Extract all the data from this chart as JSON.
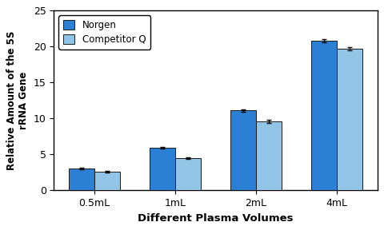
{
  "categories": [
    "0.5mL",
    "1mL",
    "2mL",
    "4mL"
  ],
  "norgen_values": [
    3.05,
    5.9,
    11.1,
    20.8
  ],
  "competitor_values": [
    2.6,
    4.5,
    9.6,
    19.7
  ],
  "norgen_errors": [
    0.12,
    0.12,
    0.18,
    0.25
  ],
  "competitor_errors": [
    0.12,
    0.12,
    0.18,
    0.18
  ],
  "norgen_color": "#2B7FD4",
  "competitor_color": "#92C4E8",
  "ylabel_top": "Relative Amount of the 5S",
  "ylabel_bottom": "rRNA Gene",
  "xlabel": "Different Plasma Volumes",
  "ylim": [
    0,
    25
  ],
  "yticks": [
    0,
    5,
    10,
    15,
    20,
    25
  ],
  "legend_labels": [
    "Norgen",
    "Competitor Q"
  ],
  "bar_width": 0.32,
  "background_color": "#FFFFFF",
  "plot_bg_color": "#FFFFFF",
  "edge_color": "#1A1A1A"
}
